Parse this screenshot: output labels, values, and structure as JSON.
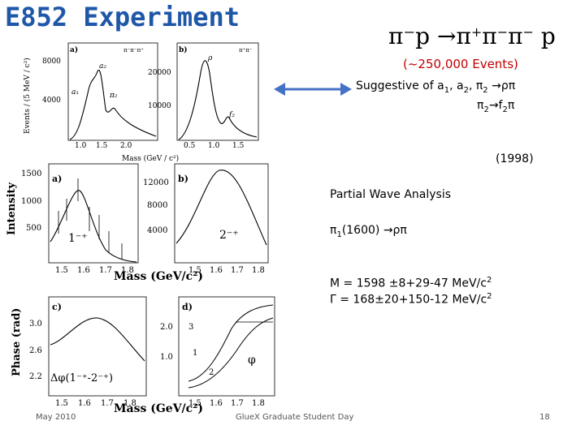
{
  "slide": {
    "title": "E852 Experiment",
    "reaction_parts": [
      "π⁻p",
      "→",
      "π",
      "+",
      "π",
      "−",
      "π",
      "−",
      "p"
    ],
    "events": "(~250,000 Events)",
    "suggestive_prefix": "Suggestive of  a",
    "a1_sub": "1",
    "a2_sep": ", a",
    "a2_sub": "2",
    "pi2_sep": ", π",
    "pi2_sub": "2",
    "suggestive_end": " →ρπ",
    "pi2_line_pre": "π",
    "pi2_line_sub": "2",
    "pi2_line_mid": "→f",
    "pi2_line_sub2": "2",
    "pi2_line_end": "π",
    "year": "(1998)",
    "pwa": "Partial Wave Analysis",
    "pi1_pre": "π",
    "pi1_sub": "1",
    "pi1_end": "(1600) →ρπ",
    "mass_line": "M = 1598 ±8+29-47    MeV/c",
    "mass_sup": "2",
    "width_line": "Γ  =  168±20+150-12  MeV/c",
    "width_sup": "2",
    "footer_left": "May 2010",
    "footer_mid": "GlueX Graduate Student Day",
    "footer_right": "18"
  },
  "figure": {
    "top_ylabel": "Events / (5 MeV / c²)",
    "top_xlabel": "Mass   (GeV / c²)",
    "panel_a_label": "a)",
    "panel_a_tag": "π⁻π⁻π⁺",
    "panel_a_yticks": [
      "8000",
      "4000"
    ],
    "panel_a_xticks": [
      "1.0",
      "1.5",
      "2.0"
    ],
    "panel_a_annotations": [
      "a₂",
      "a₁",
      "π₂"
    ],
    "panel_b_label": "b)",
    "panel_b_tag": "π⁺π⁻",
    "panel_b_yticks": [
      "20000",
      "10000"
    ],
    "panel_b_xticks": [
      "0.5",
      "1.0",
      "1.5"
    ],
    "panel_b_annotations": [
      "ρ",
      "f₂"
    ],
    "mid_ylabel": "Intensity",
    "mid_xlabel": "Mass  (GeV/c²)",
    "mid_a_label": "a)",
    "mid_a_yticks": [
      "1500",
      "1000",
      "500"
    ],
    "mid_a_wave": "1⁻⁺",
    "mid_b_label": "b)",
    "mid_b_yticks": [
      "12000",
      "8000",
      "4000"
    ],
    "mid_b_wave": "2⁻⁺",
    "mid_xticks": [
      "1.5",
      "1.6",
      "1.7",
      "1.8"
    ],
    "bot_ylabel": "Phase (rad)",
    "bot_xlabel": "Mass  (GeV/c²)",
    "bot_c_label": "c)",
    "bot_c_yticks": [
      "3.0",
      "2.6",
      "2.2"
    ],
    "bot_c_annot": "Δφ(1⁻⁺-2⁻⁺)",
    "bot_d_label": "d)",
    "bot_d_yticks": [
      "2.0",
      "1.0"
    ],
    "bot_d_annotations": [
      "3",
      "1",
      "2",
      "φ"
    ],
    "bot_xticks": [
      "1.5",
      "1.6",
      "1.7",
      "1.8"
    ]
  },
  "colors": {
    "title": "#1f57a8",
    "events": "#c00000",
    "arrow": "#4472c4"
  }
}
